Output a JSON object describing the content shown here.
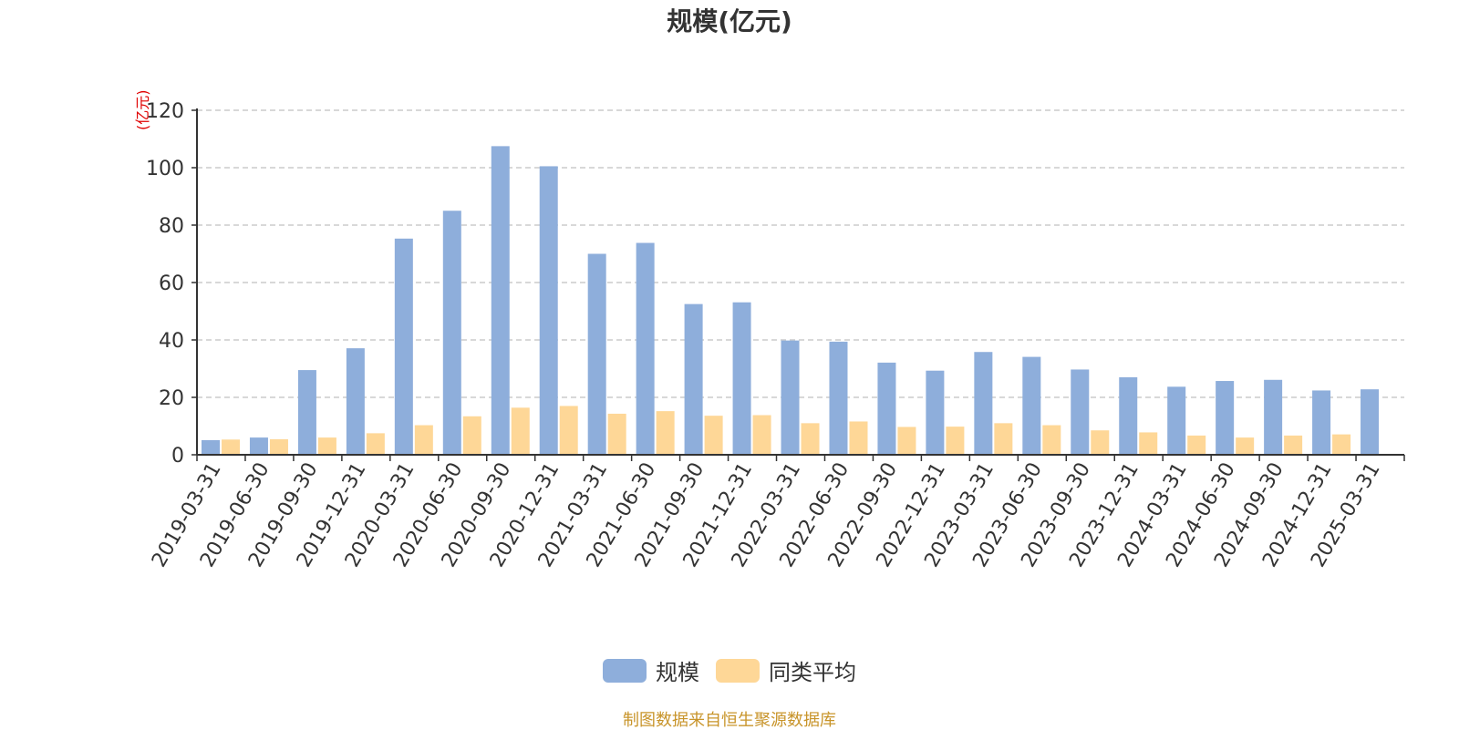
{
  "title": "规模(亿元)",
  "source_note": "制图数据来自恒生聚源数据库",
  "chart_data": {
    "type": "bar",
    "title": "规模(亿元)",
    "ylabel": "(亿元)",
    "xlabel": "",
    "ylim": [
      0,
      120
    ],
    "yticks": [
      0,
      20,
      40,
      60,
      80,
      100,
      120
    ],
    "grid": true,
    "legend_position": "bottom",
    "categories": [
      "2019-03-31",
      "2019-06-30",
      "2019-09-30",
      "2019-12-31",
      "2020-03-31",
      "2020-06-30",
      "2020-09-30",
      "2020-12-31",
      "2021-03-31",
      "2021-06-30",
      "2021-09-30",
      "2021-12-31",
      "2022-03-31",
      "2022-06-30",
      "2022-09-30",
      "2022-12-31",
      "2023-03-31",
      "2023-06-30",
      "2023-09-30",
      "2023-12-31",
      "2024-03-31",
      "2024-06-30",
      "2024-09-30",
      "2024-12-31",
      "2025-03-31"
    ],
    "series": [
      {
        "name": "规模",
        "color": "#8eaedb",
        "values": [
          5.1,
          6.0,
          29.5,
          37.1,
          75.3,
          85.0,
          107.5,
          100.5,
          70.0,
          73.8,
          52.5,
          53.1,
          39.8,
          39.4,
          32.1,
          29.3,
          35.8,
          34.1,
          29.7,
          27.0,
          23.7,
          25.7,
          26.1,
          22.4,
          22.8
        ]
      },
      {
        "name": "同类平均",
        "color": "#fed797",
        "values": [
          5.3,
          5.4,
          6.0,
          7.5,
          10.3,
          13.4,
          16.4,
          17.0,
          14.3,
          15.2,
          13.6,
          13.8,
          11.0,
          11.6,
          9.7,
          9.8,
          11.0,
          10.3,
          8.5,
          7.8,
          6.7,
          6.0,
          6.7,
          7.1,
          null
        ]
      }
    ]
  }
}
